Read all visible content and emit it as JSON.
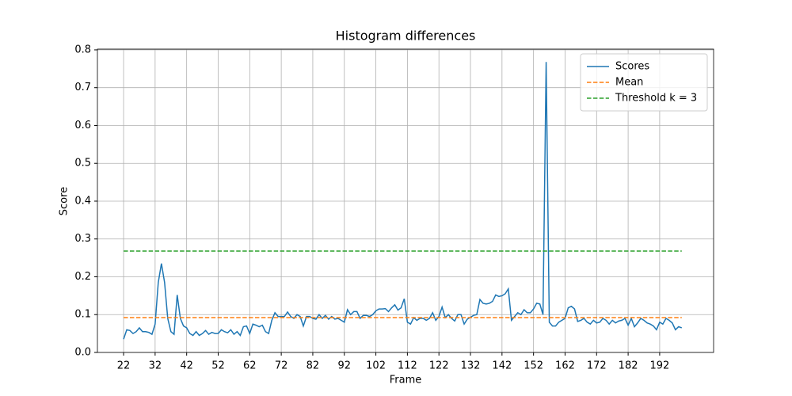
{
  "chart_data": {
    "type": "line",
    "title": "Histogram differences",
    "xlabel": "Frame",
    "ylabel": "Score",
    "xlim": [
      13.7,
      209.1
    ],
    "ylim": [
      0,
      0.802
    ],
    "xticks": [
      22,
      32,
      42,
      52,
      62,
      72,
      82,
      92,
      102,
      112,
      122,
      132,
      142,
      152,
      162,
      172,
      182,
      192
    ],
    "yticks": [
      {
        "value": 0,
        "label": "0.0"
      },
      0.1,
      0.2,
      0.3,
      0.4,
      0.5,
      0.6,
      0.7,
      0.8
    ],
    "grid": true,
    "legend": "upper right",
    "series": [
      {
        "name": "Scores",
        "color": "#1f77b4",
        "dash": false,
        "x": [
          22,
          23,
          24,
          25,
          26,
          27,
          28,
          29,
          30,
          31,
          32,
          33,
          34,
          35,
          36,
          37,
          38,
          39,
          40,
          41,
          42,
          43,
          44,
          45,
          46,
          47,
          48,
          49,
          50,
          51,
          52,
          53,
          54,
          55,
          56,
          57,
          58,
          59,
          60,
          61,
          62,
          63,
          64,
          65,
          66,
          67,
          68,
          69,
          70,
          71,
          72,
          73,
          74,
          75,
          76,
          77,
          78,
          79,
          80,
          81,
          82,
          83,
          84,
          85,
          86,
          87,
          88,
          89,
          90,
          91,
          92,
          93,
          94,
          95,
          96,
          97,
          98,
          99,
          100,
          101,
          102,
          103,
          104,
          105,
          106,
          107,
          108,
          109,
          110,
          111,
          112,
          113,
          114,
          115,
          116,
          117,
          118,
          119,
          120,
          121,
          122,
          123,
          124,
          125,
          126,
          127,
          128,
          129,
          130,
          131,
          132,
          133,
          134,
          135,
          136,
          137,
          138,
          139,
          140,
          141,
          142,
          143,
          144,
          145,
          146,
          147,
          148,
          149,
          150,
          151,
          152,
          153,
          154,
          155,
          156,
          157,
          158,
          159,
          160,
          161,
          162,
          163,
          164,
          165,
          166,
          167,
          168,
          169,
          170,
          171,
          172,
          173,
          174,
          175,
          176,
          177,
          178,
          179,
          180,
          181,
          182,
          183,
          184,
          185,
          186,
          187,
          188,
          189,
          190,
          191,
          192,
          193,
          194,
          195,
          196,
          197,
          198,
          199
        ],
        "values": [
          0.035,
          0.06,
          0.058,
          0.05,
          0.055,
          0.065,
          0.055,
          0.055,
          0.053,
          0.048,
          0.075,
          0.185,
          0.235,
          0.185,
          0.09,
          0.055,
          0.048,
          0.152,
          0.09,
          0.07,
          0.065,
          0.05,
          0.045,
          0.055,
          0.045,
          0.05,
          0.058,
          0.048,
          0.053,
          0.05,
          0.05,
          0.06,
          0.055,
          0.052,
          0.06,
          0.048,
          0.055,
          0.045,
          0.068,
          0.07,
          0.05,
          0.075,
          0.072,
          0.068,
          0.072,
          0.055,
          0.05,
          0.085,
          0.105,
          0.095,
          0.095,
          0.095,
          0.107,
          0.095,
          0.09,
          0.1,
          0.095,
          0.07,
          0.095,
          0.095,
          0.09,
          0.088,
          0.1,
          0.09,
          0.098,
          0.088,
          0.095,
          0.088,
          0.09,
          0.085,
          0.08,
          0.113,
          0.1,
          0.108,
          0.108,
          0.09,
          0.098,
          0.098,
          0.095,
          0.1,
          0.11,
          0.115,
          0.115,
          0.116,
          0.108,
          0.118,
          0.126,
          0.112,
          0.118,
          0.142,
          0.08,
          0.075,
          0.092,
          0.085,
          0.09,
          0.09,
          0.085,
          0.09,
          0.105,
          0.085,
          0.095,
          0.12,
          0.092,
          0.1,
          0.09,
          0.083,
          0.1,
          0.1,
          0.075,
          0.088,
          0.093,
          0.098,
          0.1,
          0.14,
          0.13,
          0.128,
          0.13,
          0.135,
          0.152,
          0.148,
          0.15,
          0.155,
          0.168,
          0.085,
          0.095,
          0.105,
          0.1,
          0.113,
          0.105,
          0.105,
          0.115,
          0.13,
          0.128,
          0.1,
          0.768,
          0.08,
          0.07,
          0.07,
          0.08,
          0.085,
          0.09,
          0.118,
          0.122,
          0.115,
          0.082,
          0.085,
          0.09,
          0.08,
          0.075,
          0.085,
          0.078,
          0.08,
          0.09,
          0.085,
          0.075,
          0.085,
          0.078,
          0.083,
          0.085,
          0.09,
          0.072,
          0.09,
          0.068,
          0.078,
          0.09,
          0.085,
          0.078,
          0.075,
          0.07,
          0.06,
          0.08,
          0.075,
          0.09,
          0.085,
          0.078,
          0.06,
          0.068,
          0.065
        ]
      },
      {
        "name": "Mean",
        "color": "#ff7f0e",
        "dash": true,
        "x": [
          22,
          199
        ],
        "values": [
          0.092,
          0.092
        ]
      },
      {
        "name": "Threshold k = 3",
        "color": "#2ca02c",
        "dash": true,
        "x": [
          22,
          199
        ],
        "values": [
          0.268,
          0.268
        ]
      }
    ]
  }
}
